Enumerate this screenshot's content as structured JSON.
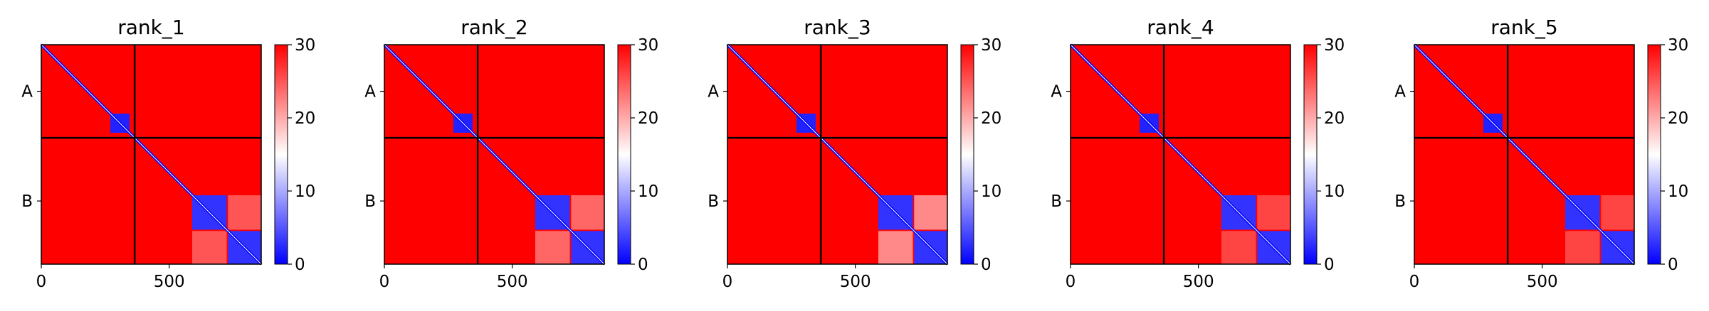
{
  "figure": {
    "panel_titles": [
      "rank_1",
      "rank_2",
      "rank_3",
      "rank_4",
      "rank_5"
    ]
  },
  "chart_data": [
    {
      "type": "heatmap",
      "title": "rank_1",
      "xlabel": "",
      "ylabel": "",
      "xlim": [
        0,
        860
      ],
      "xticks": [
        0,
        500
      ],
      "chain_labels": [
        "A",
        "B"
      ],
      "chain_boundary": 365,
      "colorbar": {
        "range": [
          0,
          30
        ],
        "ticks": [
          0,
          10,
          20,
          30
        ],
        "colormap": "bwr",
        "colors": {
          "low": "#0000ff",
          "mid": "#ffffff",
          "high": "#ff0000"
        }
      },
      "features": [
        {
          "region": "diagonal",
          "value": 0
        },
        {
          "region": "block",
          "rows": [
            270,
            345
          ],
          "cols": [
            270,
            345
          ],
          "value": 2
        },
        {
          "region": "block",
          "rows": [
            590,
            725
          ],
          "cols": [
            590,
            725
          ],
          "value": 3
        },
        {
          "region": "block",
          "rows": [
            730,
            860
          ],
          "cols": [
            730,
            860
          ],
          "value": 3
        },
        {
          "region": "off-diagonal",
          "rows": [
            590,
            725
          ],
          "cols": [
            730,
            860
          ],
          "value": 25
        },
        {
          "region": "off-diagonal",
          "rows": [
            730,
            860
          ],
          "cols": [
            590,
            725
          ],
          "value": 25
        },
        {
          "region": "background",
          "value": 30
        }
      ]
    },
    {
      "type": "heatmap",
      "title": "rank_2",
      "xlabel": "",
      "ylabel": "",
      "xlim": [
        0,
        860
      ],
      "xticks": [
        0,
        500
      ],
      "chain_labels": [
        "A",
        "B"
      ],
      "chain_boundary": 365,
      "colorbar": {
        "range": [
          0,
          30
        ],
        "ticks": [
          0,
          10,
          20,
          30
        ],
        "colormap": "bwr",
        "colors": {
          "low": "#0000ff",
          "mid": "#ffffff",
          "high": "#ff0000"
        }
      },
      "features": [
        {
          "region": "diagonal",
          "value": 0
        },
        {
          "region": "block",
          "rows": [
            270,
            345
          ],
          "cols": [
            270,
            345
          ],
          "value": 2
        },
        {
          "region": "block",
          "rows": [
            590,
            725
          ],
          "cols": [
            590,
            725
          ],
          "value": 3
        },
        {
          "region": "block",
          "rows": [
            730,
            860
          ],
          "cols": [
            730,
            860
          ],
          "value": 3
        },
        {
          "region": "off-diagonal",
          "rows": [
            590,
            725
          ],
          "cols": [
            730,
            860
          ],
          "value": 24
        },
        {
          "region": "off-diagonal",
          "rows": [
            730,
            860
          ],
          "cols": [
            590,
            725
          ],
          "value": 24
        },
        {
          "region": "background",
          "value": 30
        }
      ]
    },
    {
      "type": "heatmap",
      "title": "rank_3",
      "xlabel": "",
      "ylabel": "",
      "xlim": [
        0,
        860
      ],
      "xticks": [
        0,
        500
      ],
      "chain_labels": [
        "A",
        "B"
      ],
      "chain_boundary": 365,
      "colorbar": {
        "range": [
          0,
          30
        ],
        "ticks": [
          0,
          10,
          20,
          30
        ],
        "colormap": "bwr",
        "colors": {
          "low": "#0000ff",
          "mid": "#ffffff",
          "high": "#ff0000"
        }
      },
      "features": [
        {
          "region": "diagonal",
          "value": 0
        },
        {
          "region": "block",
          "rows": [
            270,
            345
          ],
          "cols": [
            270,
            345
          ],
          "value": 2
        },
        {
          "region": "block",
          "rows": [
            590,
            725
          ],
          "cols": [
            590,
            725
          ],
          "value": 3
        },
        {
          "region": "block",
          "rows": [
            730,
            860
          ],
          "cols": [
            730,
            860
          ],
          "value": 3
        },
        {
          "region": "off-diagonal",
          "rows": [
            590,
            725
          ],
          "cols": [
            730,
            860
          ],
          "value": 22
        },
        {
          "region": "off-diagonal",
          "rows": [
            730,
            860
          ],
          "cols": [
            590,
            725
          ],
          "value": 22
        },
        {
          "region": "background",
          "value": 30
        }
      ]
    },
    {
      "type": "heatmap",
      "title": "rank_4",
      "xlabel": "",
      "ylabel": "",
      "xlim": [
        0,
        860
      ],
      "xticks": [
        0,
        500
      ],
      "chain_labels": [
        "A",
        "B"
      ],
      "chain_boundary": 365,
      "colorbar": {
        "range": [
          0,
          30
        ],
        "ticks": [
          0,
          10,
          20,
          30
        ],
        "colormap": "bwr",
        "colors": {
          "low": "#0000ff",
          "mid": "#ffffff",
          "high": "#ff0000"
        }
      },
      "features": [
        {
          "region": "diagonal",
          "value": 0
        },
        {
          "region": "block",
          "rows": [
            270,
            345
          ],
          "cols": [
            270,
            345
          ],
          "value": 2
        },
        {
          "region": "block",
          "rows": [
            590,
            725
          ],
          "cols": [
            590,
            725
          ],
          "value": 3
        },
        {
          "region": "block",
          "rows": [
            730,
            860
          ],
          "cols": [
            730,
            860
          ],
          "value": 3
        },
        {
          "region": "off-diagonal",
          "rows": [
            590,
            725
          ],
          "cols": [
            730,
            860
          ],
          "value": 26
        },
        {
          "region": "off-diagonal",
          "rows": [
            730,
            860
          ],
          "cols": [
            590,
            725
          ],
          "value": 26
        },
        {
          "region": "background",
          "value": 30
        }
      ]
    },
    {
      "type": "heatmap",
      "title": "rank_5",
      "xlabel": "",
      "ylabel": "",
      "xlim": [
        0,
        860
      ],
      "xticks": [
        0,
        500
      ],
      "chain_labels": [
        "A",
        "B"
      ],
      "chain_boundary": 365,
      "colorbar": {
        "range": [
          0,
          30
        ],
        "ticks": [
          0,
          10,
          20,
          30
        ],
        "colormap": "bwr",
        "colors": {
          "low": "#0000ff",
          "mid": "#ffffff",
          "high": "#ff0000"
        }
      },
      "features": [
        {
          "region": "diagonal",
          "value": 0
        },
        {
          "region": "block",
          "rows": [
            270,
            345
          ],
          "cols": [
            270,
            345
          ],
          "value": 2
        },
        {
          "region": "block",
          "rows": [
            590,
            725
          ],
          "cols": [
            590,
            725
          ],
          "value": 3
        },
        {
          "region": "block",
          "rows": [
            730,
            860
          ],
          "cols": [
            730,
            860
          ],
          "value": 3
        },
        {
          "region": "off-diagonal",
          "rows": [
            590,
            725
          ],
          "cols": [
            730,
            860
          ],
          "value": 26
        },
        {
          "region": "off-diagonal",
          "rows": [
            730,
            860
          ],
          "cols": [
            590,
            725
          ],
          "value": 26
        },
        {
          "region": "background",
          "value": 30
        }
      ]
    }
  ]
}
